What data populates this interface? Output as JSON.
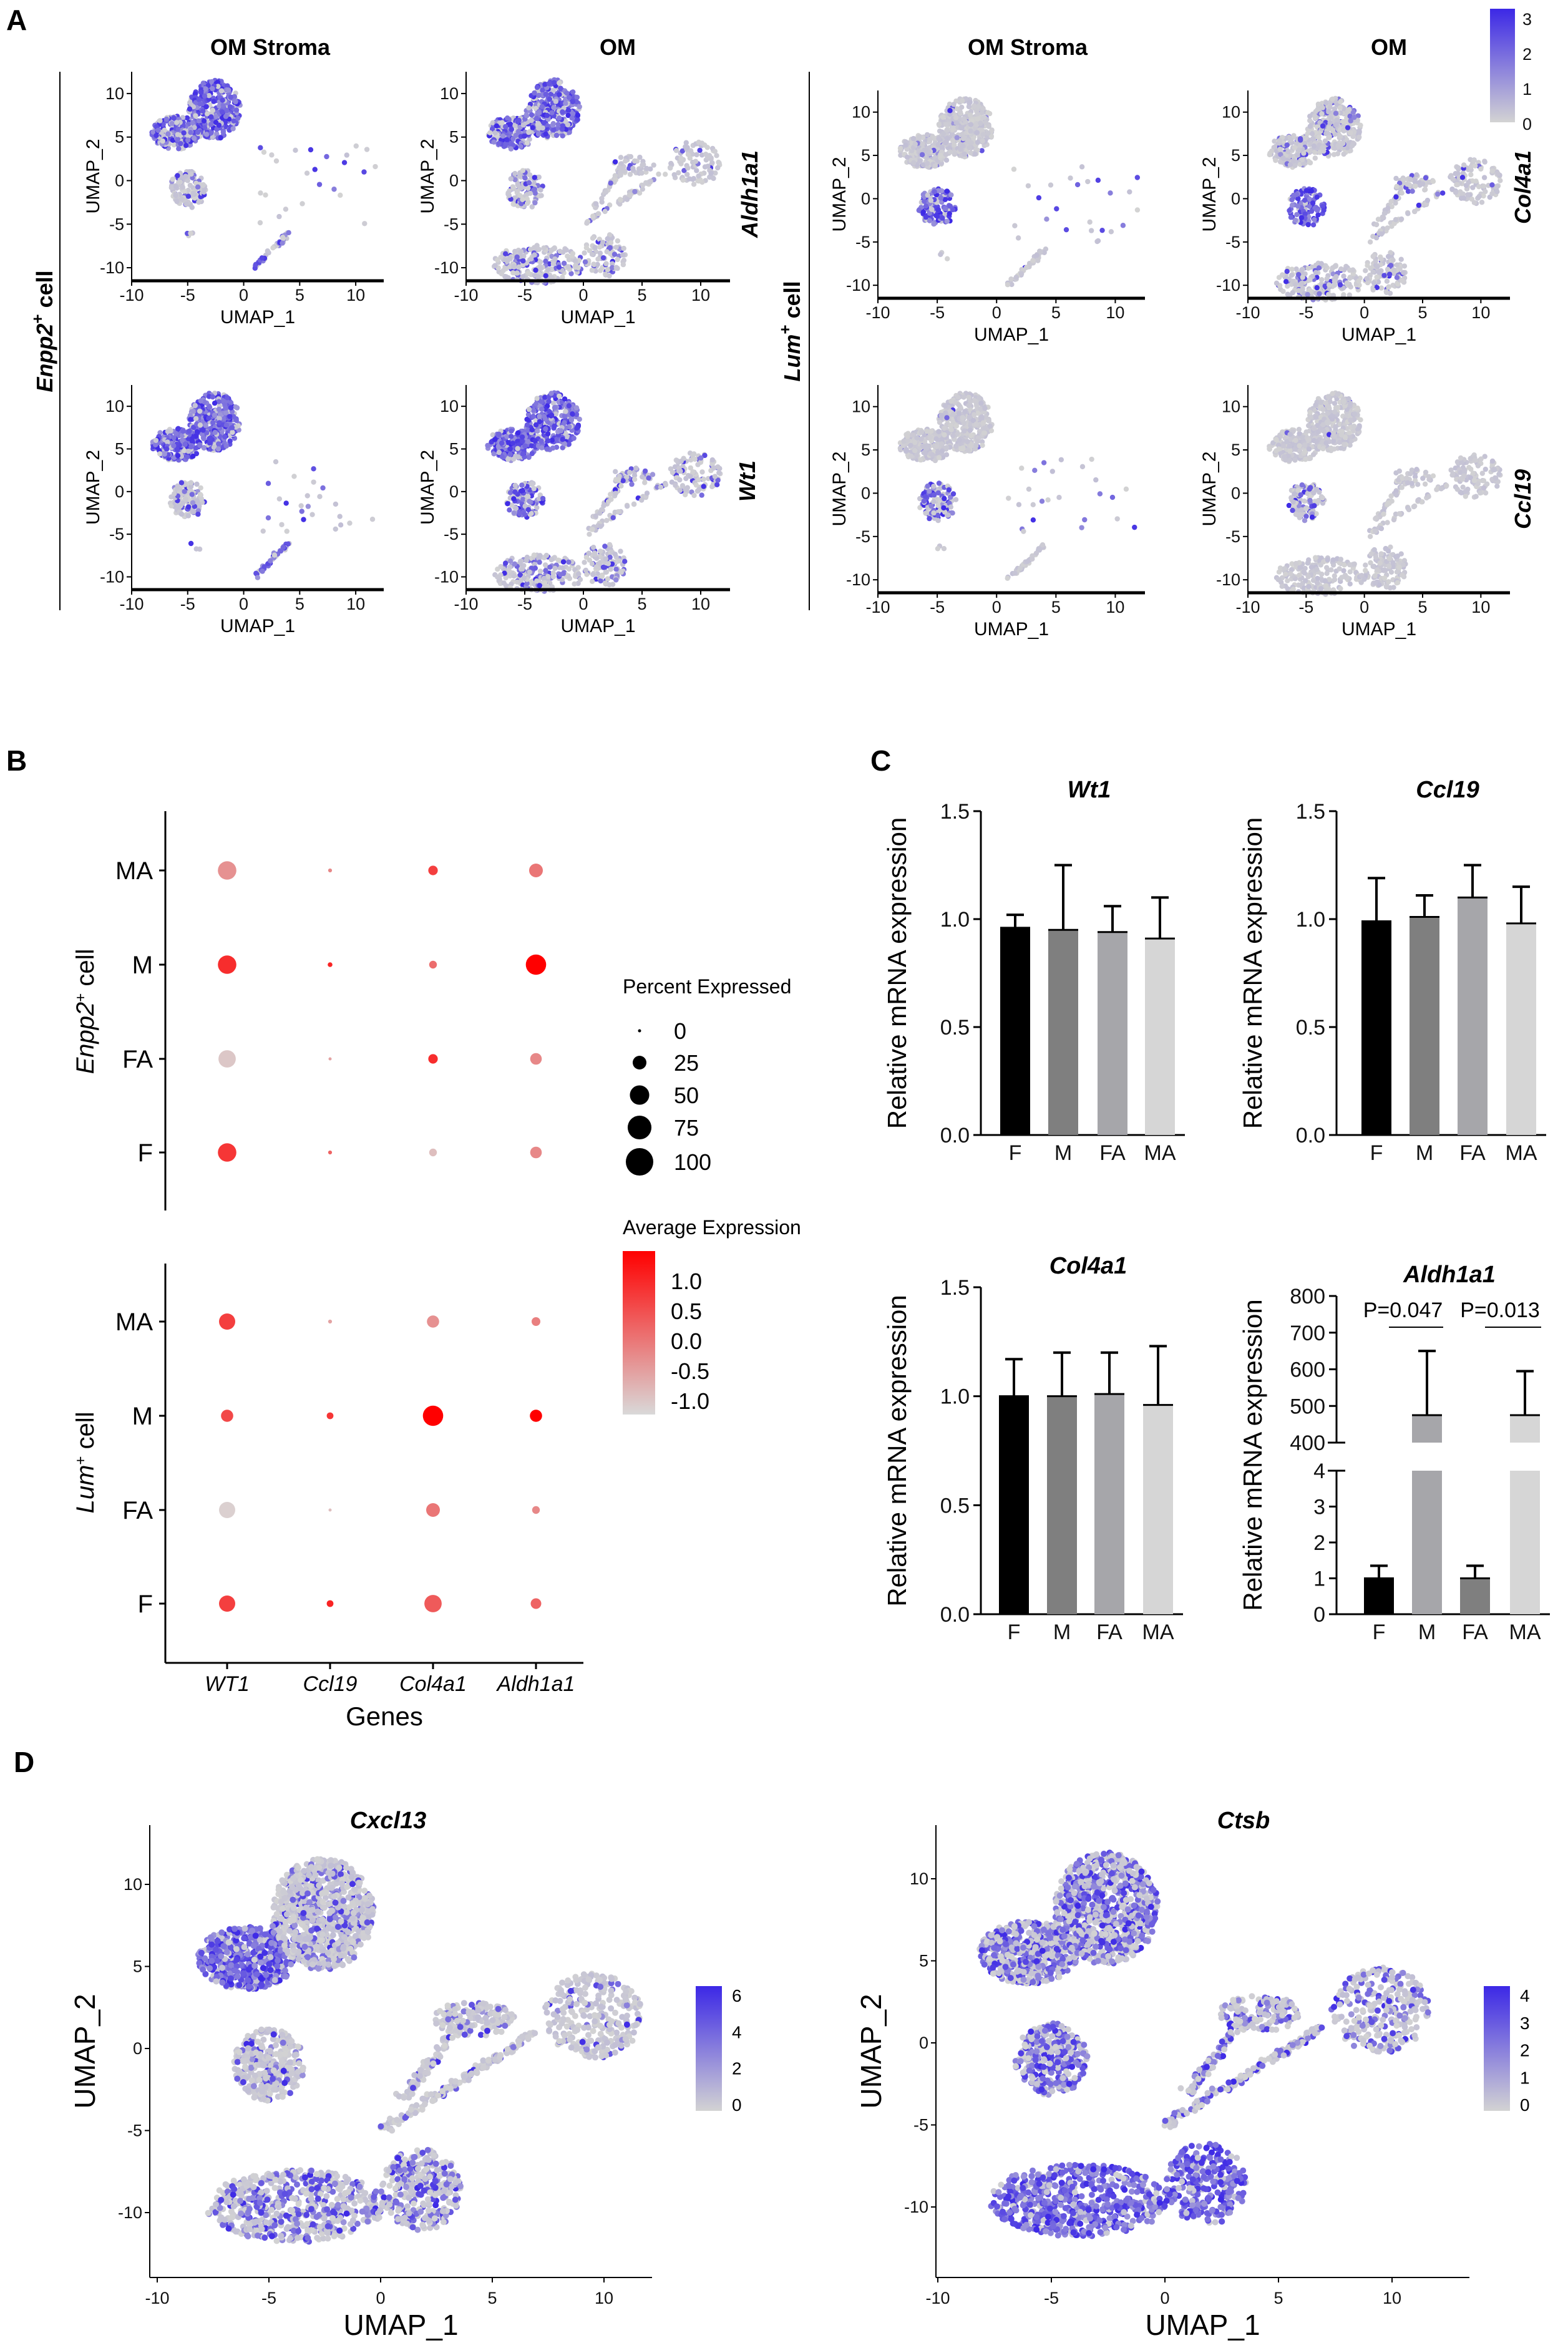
{
  "panel_letters": {
    "a": "A",
    "b": "B",
    "c": "C",
    "d": "D"
  },
  "panelA": {
    "columns": [
      "OM Stroma",
      "OM",
      "OM Stroma",
      "OM"
    ],
    "groups": [
      {
        "gene": "Enpp2",
        "sup": "+",
        "suffix": " cell"
      },
      {
        "gene": "Lum",
        "sup": "+",
        "suffix": " cell"
      }
    ],
    "genes": [
      "Aldh1a1",
      "Wt1",
      "Col4a1",
      "Ccl19"
    ],
    "xlabel": "UMAP_1",
    "ylabel": "UMAP_2",
    "xticks": [
      "-10",
      "-5",
      "0",
      "5",
      "10"
    ],
    "yticks": [
      "10",
      "5",
      "0",
      "-5",
      "-10"
    ],
    "colorbar": {
      "ticks": [
        "3",
        "2",
        "1",
        "0"
      ],
      "low": "#d3d3d3",
      "high": "#3c28e6"
    },
    "plots": [
      {
        "gene": "Aldh1a1",
        "dataset": "stroma",
        "expression": {
          "upper_main": 0.8,
          "upper_left": 0.7,
          "middle": 0.15,
          "bottom": 0.6
        }
      },
      {
        "gene": "Aldh1a1",
        "dataset": "om",
        "expression": {
          "upper_main": 0.75,
          "upper_left": 0.65,
          "middle": 0.4,
          "right": 0.1,
          "bottom": 0.25
        }
      },
      {
        "gene": "Col4a1",
        "dataset": "stroma",
        "expression": {
          "upper_main": 0.05,
          "upper_left": 0.06,
          "middle": 0.85,
          "bottom": 0.02
        }
      },
      {
        "gene": "Col4a1",
        "dataset": "om",
        "expression": {
          "upper_main": 0.15,
          "upper_left": 0.15,
          "middle": 0.9,
          "right": 0.08,
          "bottom": 0.2
        }
      },
      {
        "gene": "Wt1",
        "dataset": "stroma",
        "expression": {
          "upper_main": 0.85,
          "upper_left": 0.85,
          "middle": 0.25,
          "bottom": 0.6
        }
      },
      {
        "gene": "Wt1",
        "dataset": "om",
        "expression": {
          "upper_main": 0.85,
          "upper_left": 0.9,
          "middle": 0.5,
          "right": 0.2,
          "bottom": 0.35
        }
      },
      {
        "gene": "Ccl19",
        "dataset": "stroma",
        "expression": {
          "upper_main": 0.02,
          "upper_left": 0.03,
          "middle": 0.55,
          "bottom": 0.02
        }
      },
      {
        "gene": "Ccl19",
        "dataset": "om",
        "expression": {
          "upper_main": 0.02,
          "upper_left": 0.02,
          "middle": 0.3,
          "right": 0.0,
          "bottom": 0.0
        }
      }
    ]
  },
  "panelB": {
    "groups": [
      {
        "gene": "Enpp2",
        "sup": "+",
        "suffix": " cell",
        "rows": [
          "MA",
          "M",
          "FA",
          "F"
        ],
        "pct": [
          [
            45,
            2,
            12,
            25
          ],
          [
            45,
            3,
            8,
            55
          ],
          [
            40,
            1,
            12,
            18
          ],
          [
            45,
            2,
            8,
            18
          ]
        ],
        "avg": [
          [
            -0.3,
            -0.2,
            0.6,
            0.0
          ],
          [
            0.8,
            0.9,
            0.1,
            1.3
          ],
          [
            -0.9,
            -0.5,
            0.8,
            -0.2
          ],
          [
            0.7,
            0.2,
            -0.8,
            -0.2
          ]
        ]
      },
      {
        "gene": "Lum",
        "sup": "+",
        "suffix": " cell",
        "rows": [
          "MA",
          "M",
          "FA",
          "F"
        ],
        "pct": [
          [
            35,
            2,
            20,
            10
          ],
          [
            20,
            6,
            55,
            20
          ],
          [
            35,
            1,
            25,
            8
          ],
          [
            35,
            6,
            40,
            15
          ]
        ],
        "avg": [
          [
            0.6,
            -0.5,
            -0.3,
            -0.1
          ],
          [
            0.5,
            0.7,
            1.3,
            1.3
          ],
          [
            -1.0,
            -0.8,
            0.0,
            -0.2
          ],
          [
            0.6,
            0.9,
            0.3,
            0.2
          ]
        ]
      }
    ],
    "genes": [
      "WT1",
      "Ccl19",
      "Col4a1",
      "Aldh1a1"
    ],
    "xlabel": "Genes",
    "size_legend": {
      "title": "Percent Expressed",
      "values": [
        0,
        25,
        50,
        75,
        100
      ],
      "labels": [
        "0",
        "25",
        "50",
        "75",
        "100"
      ]
    },
    "color_legend": {
      "title": "Average Expression",
      "labels": [
        "1.0",
        "0.5",
        "0.0",
        "-0.5",
        "-1.0"
      ],
      "range": [
        -1.1,
        1.3
      ],
      "low": "#d9d9d9",
      "high": "#ff0000"
    }
  },
  "chart_data": [
    {
      "type": "bar",
      "title": "Wt1",
      "ylabel": "Relative mRNA expression",
      "categories": [
        "F",
        "M",
        "FA",
        "MA"
      ],
      "values": [
        0.96,
        0.95,
        0.94,
        0.91
      ],
      "error_upper": [
        1.02,
        1.25,
        1.06,
        1.1
      ],
      "ylim": [
        0,
        1.5
      ],
      "yticks": [
        "0.0",
        "0.5",
        "1.0",
        "1.5"
      ],
      "colors": [
        "#000000",
        "#7f7f7f",
        "#a6a6aa",
        "#d6d6d6"
      ]
    },
    {
      "type": "bar",
      "title": "Ccl19",
      "ylabel": "Relative mRNA expression",
      "categories": [
        "F",
        "M",
        "FA",
        "MA"
      ],
      "values": [
        0.99,
        1.01,
        1.1,
        0.98
      ],
      "error_upper": [
        1.19,
        1.11,
        1.25,
        1.15
      ],
      "ylim": [
        0,
        1.5
      ],
      "yticks": [
        "0.0",
        "0.5",
        "1.0",
        "1.5"
      ],
      "colors": [
        "#000000",
        "#7f7f7f",
        "#a6a6aa",
        "#d6d6d6"
      ]
    },
    {
      "type": "bar",
      "title": "Col4a1",
      "ylabel": "Relative mRNA expression",
      "categories": [
        "F",
        "M",
        "FA",
        "MA"
      ],
      "values": [
        1.0,
        1.0,
        1.01,
        0.96
      ],
      "error_upper": [
        1.17,
        1.2,
        1.2,
        1.23
      ],
      "ylim": [
        0,
        1.5
      ],
      "yticks": [
        "0.0",
        "0.5",
        "1.0",
        "1.5"
      ],
      "colors": [
        "#000000",
        "#7f7f7f",
        "#a6a6aa",
        "#d6d6d6"
      ]
    },
    {
      "type": "bar",
      "title": "Aldh1a1",
      "ylabel": "Relative mRNA expression",
      "categories": [
        "F",
        "M",
        "FA",
        "MA"
      ],
      "values": [
        1.0,
        475,
        1.0,
        475
      ],
      "error_upper": [
        1.35,
        650,
        1.35,
        595
      ],
      "axis_break": [
        4,
        400
      ],
      "ylim": [
        0,
        800
      ],
      "yticks_low": [
        "0",
        "1",
        "2",
        "3",
        "4"
      ],
      "yticks_high": [
        "400",
        "500",
        "600",
        "700",
        "800"
      ],
      "colors": [
        "#000000",
        "#a6a6aa",
        "#7f7f7f",
        "#d6d6d6"
      ],
      "annotations": [
        {
          "text": "P=0.047",
          "from": "F",
          "to": "M"
        },
        {
          "text": "P=0.013",
          "from": "FA",
          "to": "MA"
        }
      ]
    }
  ],
  "panelD": {
    "plots": [
      {
        "gene": "Cxcl13",
        "colorbar_ticks": [
          "6",
          "4",
          "2",
          "0"
        ],
        "expression": {
          "upper_main": 0.25,
          "upper_left": 0.85,
          "middle": 0.2,
          "right": 0.15,
          "bottom": 0.4
        }
      },
      {
        "gene": "Ctsb",
        "colorbar_ticks": [
          "4",
          "3",
          "2",
          "1",
          "0"
        ],
        "expression": {
          "upper_main": 0.5,
          "upper_left": 0.55,
          "middle": 0.55,
          "right": 0.35,
          "bottom": 0.85
        }
      }
    ],
    "xlabel": "UMAP_1",
    "ylabel": "UMAP_2",
    "xticks": [
      "-10",
      "-5",
      "0",
      "5",
      "10"
    ],
    "yticks": [
      "10",
      "5",
      "0",
      "-5",
      "-10"
    ]
  }
}
